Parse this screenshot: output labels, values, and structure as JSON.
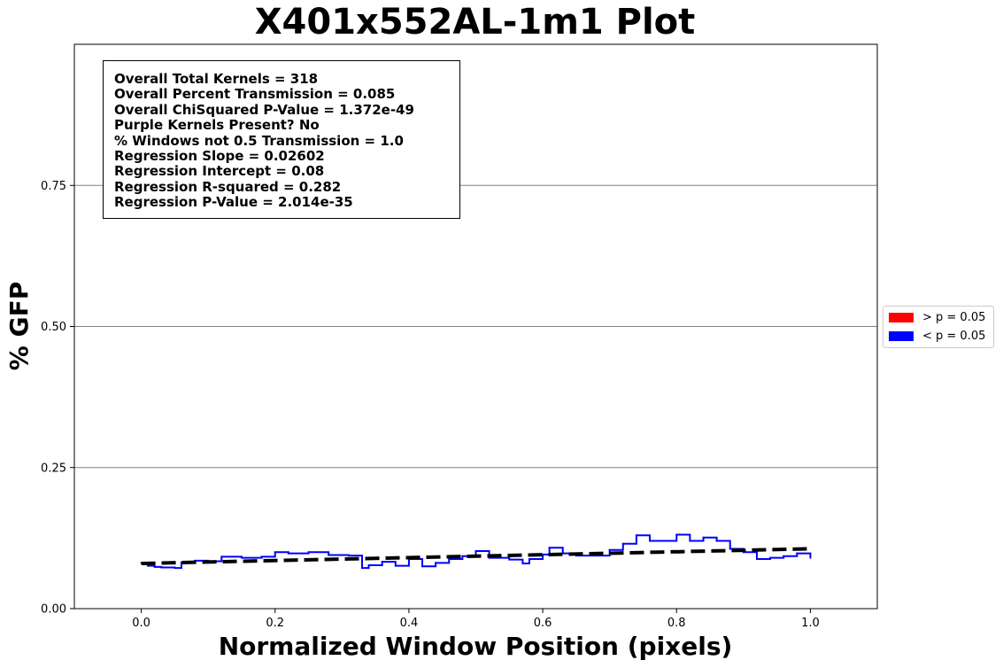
{
  "chart_data": {
    "type": "line",
    "title": "X401x552AL-1m1 Plot",
    "xlabel": "Normalized Window Position (pixels)",
    "ylabel": "% GFP",
    "xlim": [
      -0.1,
      1.1
    ],
    "ylim": [
      0.0,
      1.0
    ],
    "xticks": [
      0.0,
      0.2,
      0.4,
      0.6,
      0.8,
      1.0
    ],
    "xtick_labels": [
      "0.0",
      "0.2",
      "0.4",
      "0.6",
      "0.8",
      "1.0"
    ],
    "yticks": [
      0.0,
      0.25,
      0.5,
      0.75
    ],
    "ytick_labels": [
      "0.00",
      "0.25",
      "0.50",
      "0.75"
    ],
    "grid": "horizontal",
    "colors": {
      "significant": "#0000ff",
      "not_significant": "#ff0000",
      "grid": "#808080",
      "regression": "#000000"
    },
    "series": [
      {
        "name": "% GFP (< p = 0.05)",
        "color": "#0000ff",
        "style": "solid",
        "x": [
          0.0,
          0.01,
          0.02,
          0.03,
          0.05,
          0.06,
          0.08,
          0.1,
          0.12,
          0.15,
          0.18,
          0.2,
          0.22,
          0.25,
          0.28,
          0.31,
          0.33,
          0.34,
          0.36,
          0.38,
          0.4,
          0.42,
          0.44,
          0.46,
          0.48,
          0.5,
          0.52,
          0.55,
          0.57,
          0.58,
          0.6,
          0.61,
          0.63,
          0.65,
          0.68,
          0.7,
          0.72,
          0.74,
          0.76,
          0.78,
          0.8,
          0.82,
          0.84,
          0.86,
          0.88,
          0.9,
          0.92,
          0.94,
          0.96,
          0.98,
          1.0
        ],
        "y": [
          0.081,
          0.076,
          0.074,
          0.073,
          0.072,
          0.082,
          0.085,
          0.084,
          0.092,
          0.09,
          0.092,
          0.1,
          0.098,
          0.1,
          0.095,
          0.094,
          0.072,
          0.077,
          0.083,
          0.076,
          0.088,
          0.075,
          0.081,
          0.088,
          0.093,
          0.102,
          0.09,
          0.087,
          0.08,
          0.088,
          0.096,
          0.108,
          0.098,
          0.094,
          0.094,
          0.104,
          0.115,
          0.13,
          0.12,
          0.12,
          0.131,
          0.12,
          0.126,
          0.12,
          0.106,
          0.1,
          0.088,
          0.09,
          0.093,
          0.098,
          0.09
        ]
      },
      {
        "name": "Regression",
        "color": "#000000",
        "style": "dashed",
        "x": [
          0.0,
          1.0
        ],
        "y": [
          0.08,
          0.10602
        ]
      }
    ],
    "legend": {
      "placement": "right",
      "entries": [
        {
          "label": "> p = 0.05",
          "color": "#ff0000"
        },
        {
          "label": "< p = 0.05",
          "color": "#0000ff"
        }
      ]
    },
    "annotation": [
      "Overall Total Kernels = 318",
      "Overall Percent Transmission = 0.085",
      "Overall ChiSquared P-Value = 1.372e-49",
      "Purple Kernels Present? No",
      "% Windows not 0.5 Transmission = 1.0",
      "Regression Slope = 0.02602",
      "Regression Intercept = 0.08",
      "Regression R-squared = 0.282",
      "Regression P-Value = 2.014e-35"
    ]
  }
}
